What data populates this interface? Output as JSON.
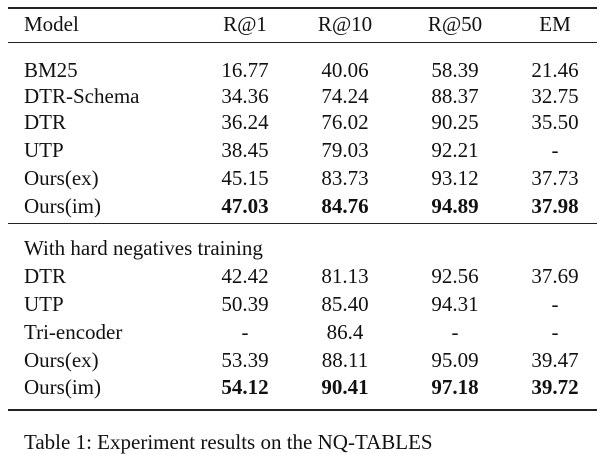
{
  "table": {
    "header": [
      "Model",
      "R@1",
      "R@10",
      "R@50",
      "EM"
    ],
    "groups": [
      {
        "rows": [
          [
            "BM25",
            "16.77",
            "40.06",
            "58.39",
            "21.46"
          ],
          [
            "DTR-Schema",
            "34.36",
            "74.24",
            "88.37",
            "32.75"
          ],
          [
            "DTR",
            "36.24",
            "76.02",
            "90.25",
            "35.50"
          ],
          [
            "UTP",
            "38.45",
            "79.03",
            "92.21",
            "-"
          ],
          [
            "Ours(ex)",
            "45.15",
            "83.73",
            "93.12",
            "37.73"
          ],
          [
            "Ours(im)",
            "47.03",
            "84.76",
            "94.89",
            "37.98"
          ]
        ]
      },
      {
        "title": "With hard negatives training",
        "rows": [
          [
            "DTR",
            "42.42",
            "81.13",
            "92.56",
            "37.69"
          ],
          [
            "UTP",
            "50.39",
            "85.40",
            "94.31",
            "-"
          ],
          [
            "Tri-encoder",
            "-",
            "86.4",
            "-",
            "-"
          ],
          [
            "Ours(ex)",
            "53.39",
            "88.11",
            "95.09",
            "39.47"
          ],
          [
            "Ours(im)",
            "54.12",
            "90.41",
            "97.18",
            "39.72"
          ]
        ]
      }
    ]
  },
  "caption": "Table 1: Experiment results on the NQ-TABLES"
}
